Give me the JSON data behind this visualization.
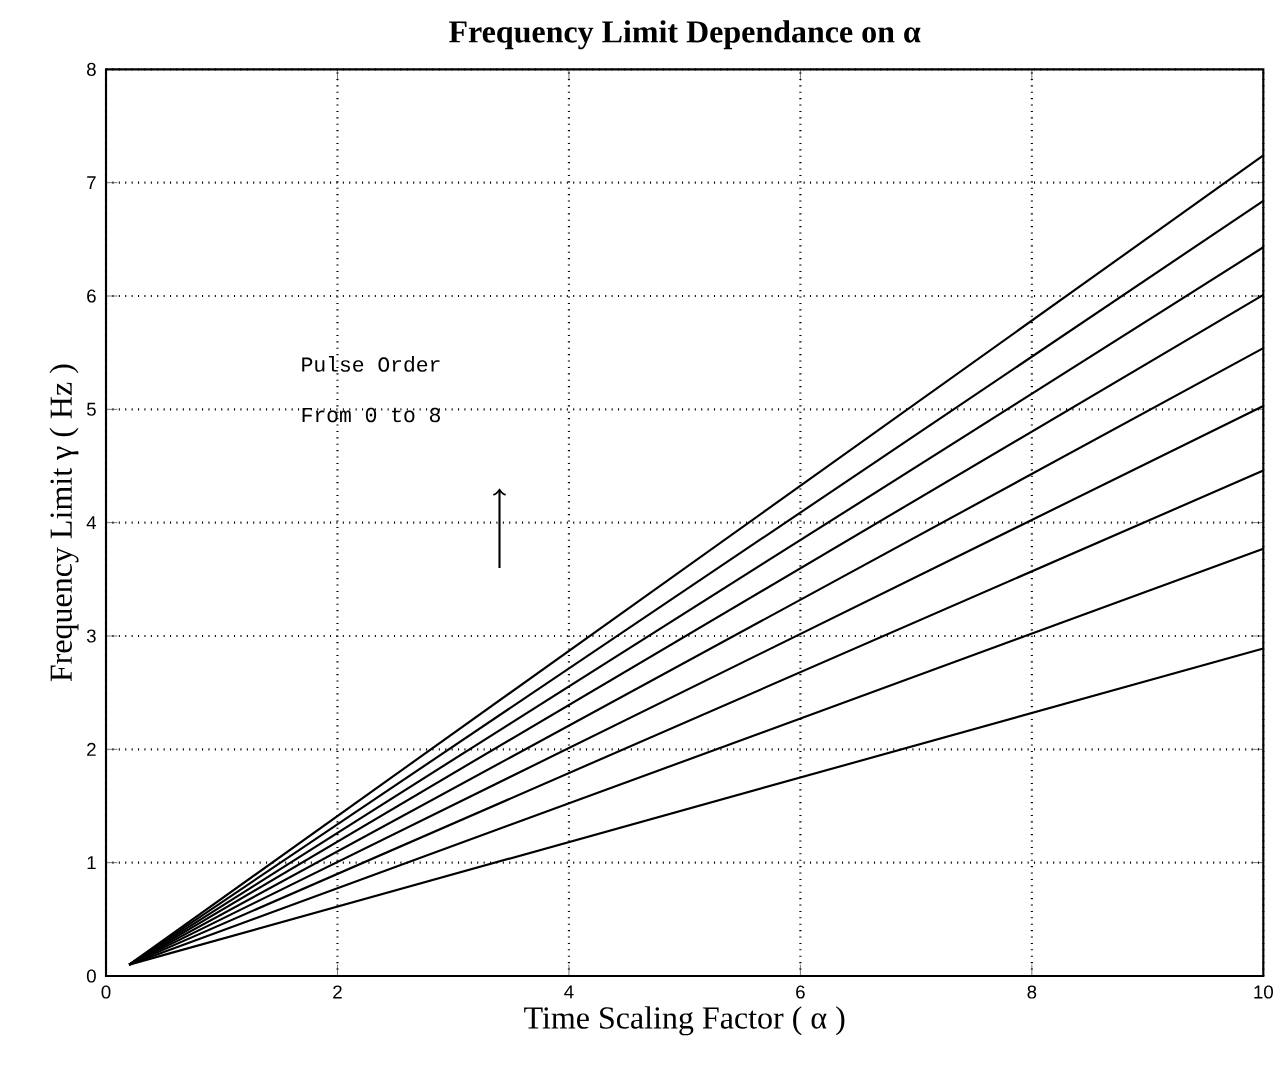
{
  "chart_data": {
    "type": "line",
    "title": "Frequency Limit Dependance on α",
    "xlabel": "Time Scaling Factor ( α )",
    "ylabel": "Frequency Limit  γ ( Hz )",
    "annotations": [
      "Pulse Order",
      "From 0 to 8"
    ],
    "x": [
      0.2,
      10
    ],
    "series": [
      {
        "color": "#000000",
        "values": [
          0.1,
          2.89
        ]
      },
      {
        "color": "#000000",
        "values": [
          0.1,
          3.77
        ]
      },
      {
        "color": "#000000",
        "values": [
          0.1,
          4.46
        ]
      },
      {
        "color": "#000000",
        "values": [
          0.1,
          5.03
        ]
      },
      {
        "color": "#000000",
        "values": [
          0.1,
          5.54
        ]
      },
      {
        "color": "#000000",
        "values": [
          0.1,
          6.01
        ]
      },
      {
        "color": "#000000",
        "values": [
          0.1,
          6.43
        ]
      },
      {
        "color": "#000000",
        "values": [
          0.1,
          6.84
        ]
      },
      {
        "color": "#000000",
        "values": [
          0.1,
          7.24
        ]
      }
    ],
    "xlim": [
      0,
      10
    ],
    "ylim": [
      0,
      8
    ],
    "xticks": [
      0,
      2,
      4,
      6,
      8,
      10
    ],
    "yticks": [
      0,
      1,
      2,
      3,
      4,
      5,
      6,
      7,
      8
    ],
    "grid": true,
    "line_style": "solid"
  }
}
